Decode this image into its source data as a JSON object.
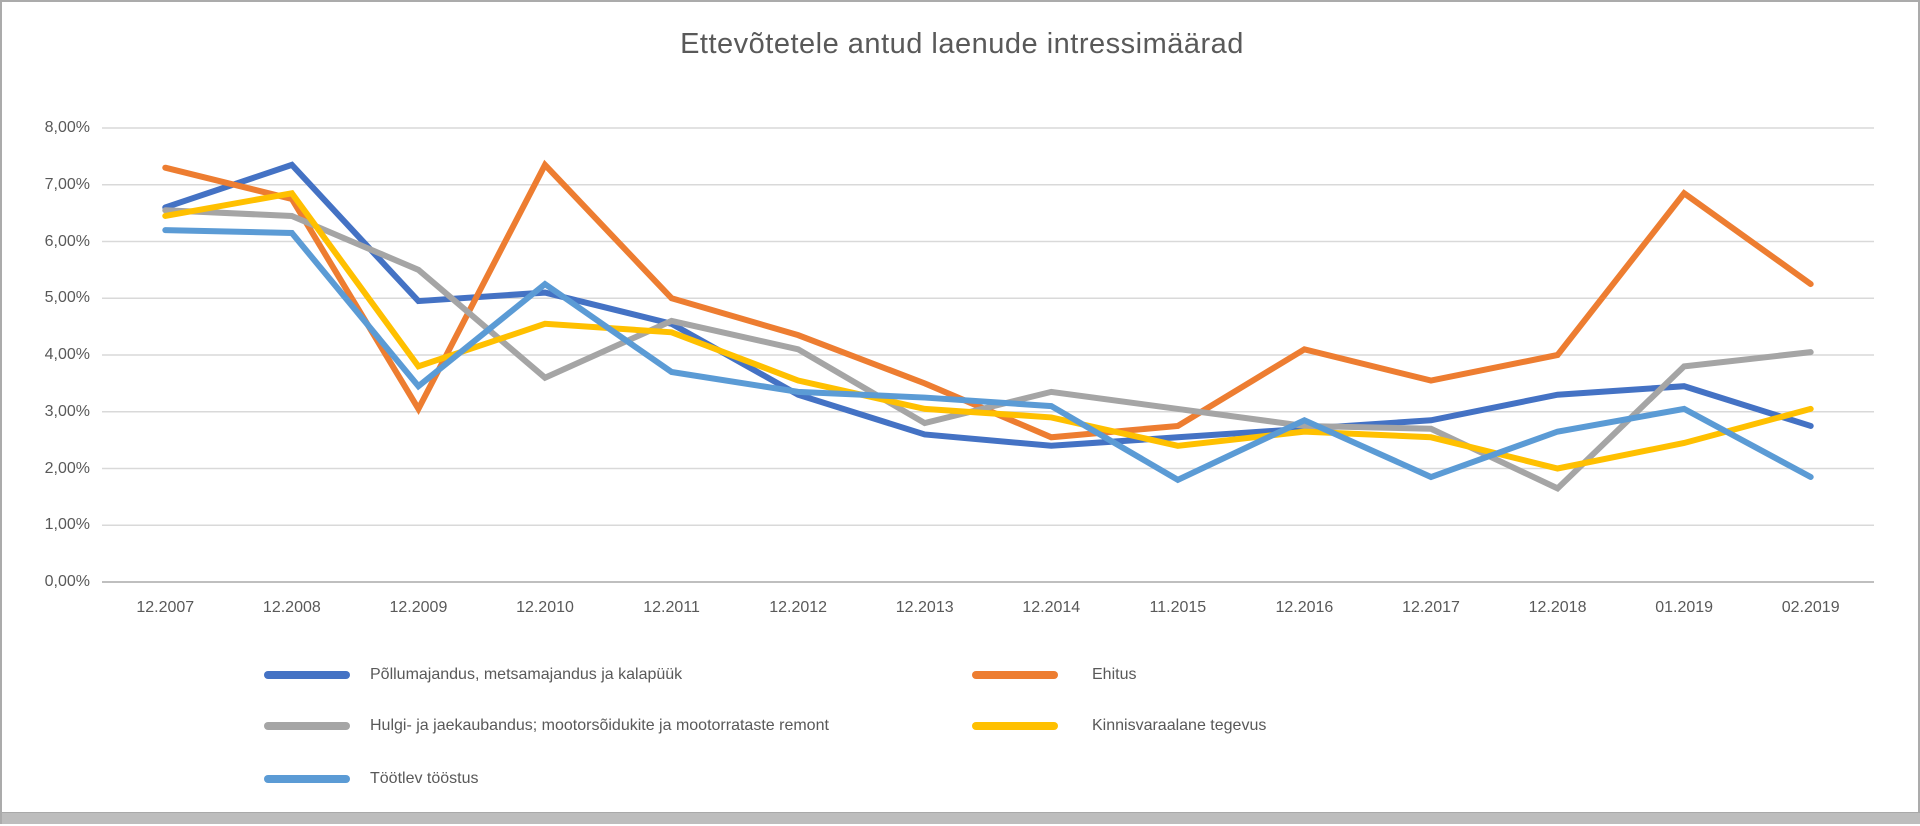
{
  "window": {
    "background": "#ffffff",
    "border_color": "#ababab",
    "bottom_strip_color": "#bdbdbd"
  },
  "chart_data": {
    "type": "line",
    "title": "Ettevõtetele antud laenude intressimäärad",
    "xlabel": "",
    "ylabel": "",
    "ylim": [
      0,
      8
    ],
    "y_tick_step": 1,
    "y_tick_labels_bottom_to_top": [
      "0,00%",
      "1,00%",
      "2,00%",
      "3,00%",
      "4,00%",
      "5,00%",
      "6,00%",
      "7,00%",
      "8,00%"
    ],
    "grid": true,
    "gridline_color": "#d9d9d9",
    "axis_line_color": "#bfbfbf",
    "text_color": "#595959",
    "legend_position": "bottom",
    "categories": [
      "12.2007",
      "12.2008",
      "12.2009",
      "12.2010",
      "12.2011",
      "12.2012",
      "12.2013",
      "12.2014",
      "11.2015",
      "12.2016",
      "12.2017",
      "12.2018",
      "01.2019",
      "02.2019"
    ],
    "series": [
      {
        "name": "Põllumajandus, metsamajandus ja kalapüük",
        "color": "#4472C4",
        "values": [
          6.6,
          7.35,
          4.95,
          5.1,
          4.55,
          3.3,
          2.6,
          2.4,
          2.55,
          2.7,
          2.85,
          3.3,
          3.45,
          2.75
        ]
      },
      {
        "name": "Ehitus",
        "color": "#ED7D31",
        "values": [
          7.3,
          6.75,
          3.05,
          7.35,
          5.0,
          4.35,
          3.5,
          2.55,
          2.75,
          4.1,
          3.55,
          4.0,
          6.85,
          5.25
        ]
      },
      {
        "name": "Hulgi- ja jaekaubandus; mootorsõidukite ja mootorrataste remont",
        "color": "#A5A5A5",
        "values": [
          6.55,
          6.45,
          5.5,
          3.6,
          4.6,
          4.1,
          2.8,
          3.35,
          3.05,
          2.75,
          2.7,
          1.65,
          3.8,
          4.05
        ]
      },
      {
        "name": "Kinnisvaraalane tegevus",
        "color": "#FFC000",
        "values": [
          6.45,
          6.85,
          3.8,
          4.55,
          4.4,
          3.55,
          3.05,
          2.9,
          2.4,
          2.65,
          2.55,
          2.0,
          2.45,
          3.05
        ]
      },
      {
        "name": "Töötlev tööstus",
        "color": "#5B9BD5",
        "values": [
          6.2,
          6.15,
          3.45,
          5.25,
          3.7,
          3.35,
          3.25,
          3.1,
          1.8,
          2.85,
          1.85,
          2.65,
          3.05,
          1.85
        ]
      }
    ],
    "legend_rows": [
      [
        0,
        1
      ],
      [
        2,
        3
      ],
      [
        4
      ]
    ]
  }
}
